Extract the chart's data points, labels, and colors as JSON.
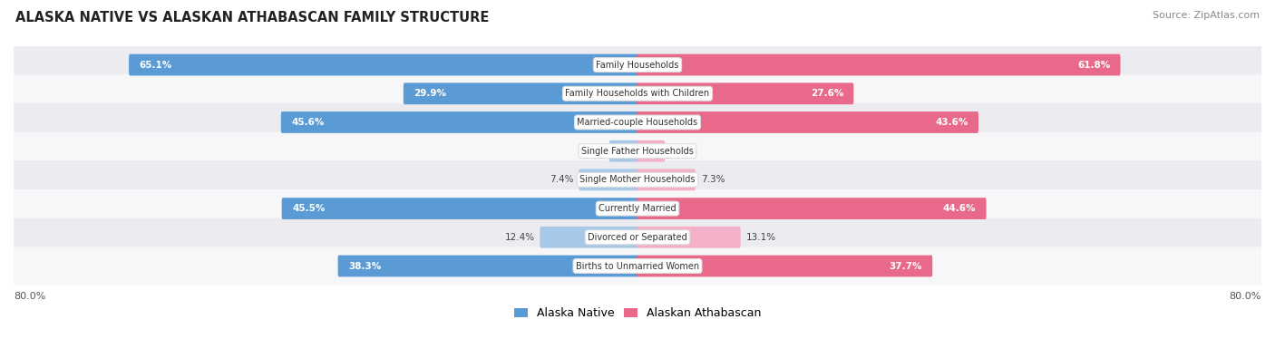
{
  "title": "ALASKA NATIVE VS ALASKAN ATHABASCAN FAMILY STRUCTURE",
  "source": "Source: ZipAtlas.com",
  "categories": [
    "Family Households",
    "Family Households with Children",
    "Married-couple Households",
    "Single Father Households",
    "Single Mother Households",
    "Currently Married",
    "Divorced or Separated",
    "Births to Unmarried Women"
  ],
  "alaska_native": [
    65.1,
    29.9,
    45.6,
    3.5,
    7.4,
    45.5,
    12.4,
    38.3
  ],
  "alaskan_athabascan": [
    61.8,
    27.6,
    43.6,
    3.4,
    7.3,
    44.6,
    13.1,
    37.7
  ],
  "max_val": 80.0,
  "blue_dark": "#5b9bd5",
  "blue_light": "#a8c8e8",
  "pink_dark": "#e8698a",
  "pink_light": "#f4b0c8",
  "bg_row_alt": "#ebebf0",
  "bg_row_norm": "#f7f7fa",
  "axis_label_left": "80.0%",
  "axis_label_right": "80.0%",
  "inside_threshold": 15.0
}
